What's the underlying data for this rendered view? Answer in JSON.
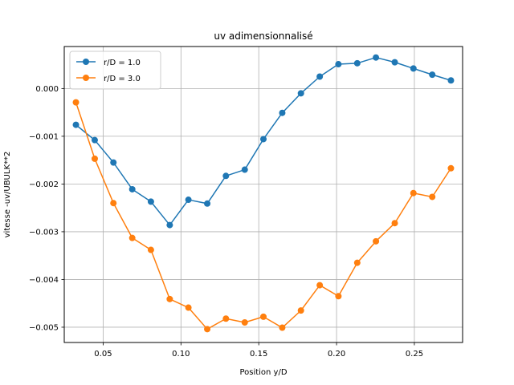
{
  "chart_data": {
    "type": "line",
    "title": "uv adimensionnalisé",
    "xlabel": "Position y/D",
    "ylabel": "vitesse -uv/UBULK**2",
    "xlim": [
      0.025,
      0.281
    ],
    "ylim": [
      -0.00532,
      0.00088
    ],
    "xticks": [
      0.05,
      0.1,
      0.15,
      0.2,
      0.25
    ],
    "xtick_labels": [
      "0.05",
      "0.10",
      "0.15",
      "0.20",
      "0.25"
    ],
    "yticks": [
      0.0,
      -0.001,
      -0.002,
      -0.003,
      -0.004,
      -0.005
    ],
    "ytick_labels": [
      "0.000",
      "−0.001",
      "−0.002",
      "−0.003",
      "−0.004",
      "−0.005"
    ],
    "grid": true,
    "legend_position": "top-left",
    "x": [
      0.0325,
      0.0446,
      0.0566,
      0.0687,
      0.0807,
      0.0928,
      0.1048,
      0.1169,
      0.1289,
      0.141,
      0.153,
      0.1651,
      0.1771,
      0.1892,
      0.2012,
      0.2133,
      0.2253,
      0.2374,
      0.2494,
      0.2615,
      0.2735
    ],
    "series": [
      {
        "name": "r/D = 1.0",
        "color": "#1f77b4",
        "values": [
          -0.00076,
          -0.00108,
          -0.00155,
          -0.00211,
          -0.00237,
          -0.00286,
          -0.00233,
          -0.00241,
          -0.00183,
          -0.0017,
          -0.00106,
          -0.00051,
          -0.0001,
          0.00025,
          0.00051,
          0.00053,
          0.00065,
          0.00055,
          0.00042,
          0.00029,
          0.00017
        ]
      },
      {
        "name": "r/D = 3.0",
        "color": "#ff7f0e",
        "values": [
          -0.00029,
          -0.00147,
          -0.0024,
          -0.00313,
          -0.00338,
          -0.00441,
          -0.00459,
          -0.00504,
          -0.00482,
          -0.0049,
          -0.00478,
          -0.00501,
          -0.00465,
          -0.00412,
          -0.00435,
          -0.00365,
          -0.0032,
          -0.00282,
          -0.00219,
          -0.00227,
          -0.00167
        ]
      }
    ]
  }
}
